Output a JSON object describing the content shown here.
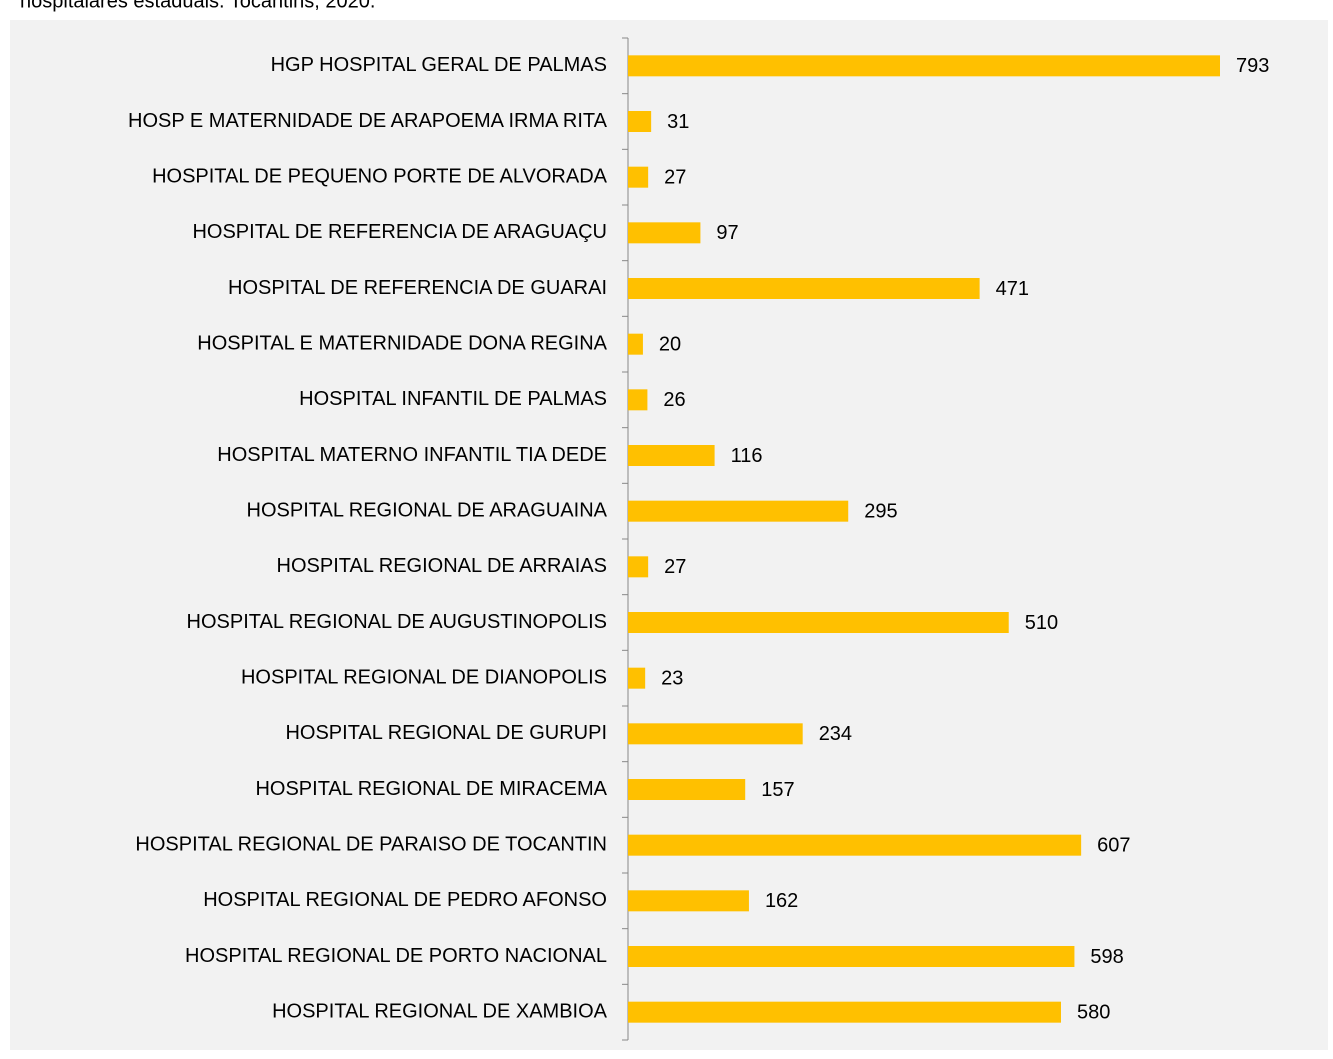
{
  "chart_data": {
    "type": "bar",
    "orientation": "horizontal",
    "title": "hospitalares estaduais. Tocantins, 2020.",
    "color": "#ffc000",
    "categories": [
      "HGP HOSPITAL GERAL DE PALMAS",
      "HOSP E MATERNIDADE DE ARAPOEMA IRMA RITA",
      "HOSPITAL DE PEQUENO PORTE DE ALVORADA",
      "HOSPITAL DE REFERENCIA DE ARAGUAÇU",
      "HOSPITAL DE REFERENCIA DE GUARAI",
      "HOSPITAL E MATERNIDADE DONA REGINA",
      "HOSPITAL INFANTIL DE PALMAS",
      "HOSPITAL MATERNO INFANTIL TIA DEDE",
      "HOSPITAL REGIONAL DE ARAGUAINA",
      "HOSPITAL REGIONAL DE ARRAIAS",
      "HOSPITAL REGIONAL DE AUGUSTINOPOLIS",
      "HOSPITAL REGIONAL DE DIANOPOLIS",
      "HOSPITAL REGIONAL DE GURUPI",
      "HOSPITAL REGIONAL DE MIRACEMA",
      "HOSPITAL REGIONAL DE PARAISO DE TOCANTIN",
      "HOSPITAL REGIONAL DE PEDRO AFONSO",
      "HOSPITAL REGIONAL DE PORTO NACIONAL",
      "HOSPITAL REGIONAL DE XAMBIOA"
    ],
    "values": [
      793,
      31,
      27,
      97,
      471,
      20,
      26,
      116,
      295,
      27,
      510,
      23,
      234,
      157,
      607,
      162,
      598,
      580
    ]
  }
}
